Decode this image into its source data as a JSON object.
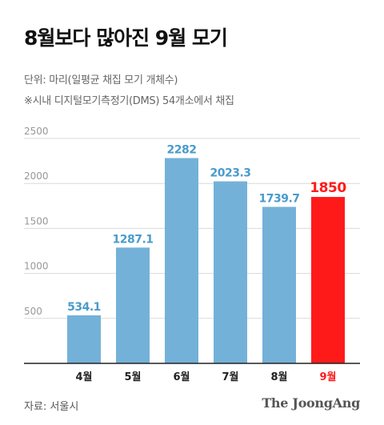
{
  "title": "8월보다 많아진 9월 모기",
  "unit_note": "단위: 마리(일평균 채집 모기 개체수)",
  "method_note": "※시내 디지털모기측정기(DMS) 54개소에서 채집",
  "source": "자료: 서울시",
  "brand": "The JoongAng",
  "colors": {
    "bar": "#74b1d8",
    "highlight": "#ff1a1a",
    "label": "#4a9bcc"
  },
  "chart_data": {
    "type": "bar",
    "title": "8월보다 많아진 9월 모기",
    "categories": [
      "4월",
      "5월",
      "6월",
      "7월",
      "8월",
      "9월"
    ],
    "values": [
      534.1,
      1287.1,
      2282,
      2023.3,
      1739.7,
      1850
    ],
    "value_labels": [
      "534.1",
      "1287.1",
      "2282",
      "2023.3",
      "1739.7",
      "1850"
    ],
    "highlight_index": 5,
    "ylim": [
      0,
      2500
    ],
    "yticks": [
      500,
      1000,
      1500,
      2000,
      2500
    ],
    "ytick_labels": [
      "500",
      "1000",
      "1500",
      "2000",
      "2500"
    ],
    "grid": true
  }
}
